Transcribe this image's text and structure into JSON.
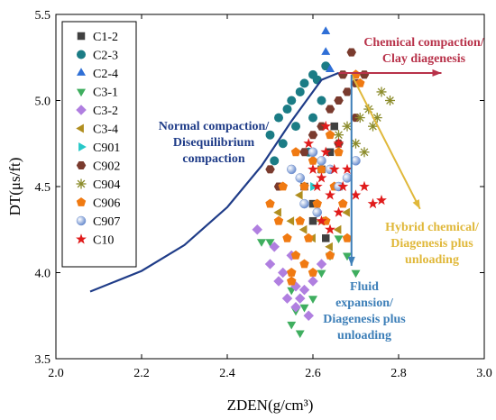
{
  "chart_data": {
    "type": "scatter",
    "xlabel": "ZDEN(g/cm³)",
    "ylabel": "DT(μs/ft)",
    "xlim": [
      2.0,
      3.0
    ],
    "ylim": [
      3.5,
      5.5
    ],
    "x_ticks": [
      "2.0",
      "2.2",
      "2.4",
      "2.6",
      "2.8",
      "3.0"
    ],
    "y_ticks": [
      "3.5",
      "4.0",
      "4.5",
      "5.0",
      "5.5"
    ],
    "grid": false,
    "legend_position": "top-left",
    "series": [
      {
        "name": "C1-2",
        "marker": "square",
        "color": "#404040",
        "points": [
          [
            2.58,
            4.5
          ],
          [
            2.6,
            4.4
          ],
          [
            2.62,
            4.6
          ],
          [
            2.64,
            4.7
          ],
          [
            2.66,
            4.5
          ],
          [
            2.6,
            4.3
          ],
          [
            2.65,
            4.85
          ],
          [
            2.63,
            4.2
          ]
        ]
      },
      {
        "name": "C2-3",
        "marker": "circle",
        "color": "#1b7c85",
        "points": [
          [
            2.5,
            4.8
          ],
          [
            2.52,
            4.9
          ],
          [
            2.55,
            5.0
          ],
          [
            2.57,
            5.05
          ],
          [
            2.58,
            5.1
          ],
          [
            2.6,
            5.15
          ],
          [
            2.61,
            5.12
          ],
          [
            2.63,
            5.2
          ],
          [
            2.54,
            4.95
          ],
          [
            2.56,
            4.85
          ],
          [
            2.59,
            4.7
          ],
          [
            2.6,
            4.9
          ],
          [
            2.62,
            5.0
          ],
          [
            2.53,
            4.75
          ],
          [
            2.51,
            4.65
          ]
        ]
      },
      {
        "name": "C2-4",
        "marker": "triangle-up",
        "color": "#2f6fd6",
        "points": [
          [
            2.63,
            5.4
          ],
          [
            2.63,
            5.28
          ],
          [
            2.64,
            5.18
          ]
        ]
      },
      {
        "name": "C3-1",
        "marker": "triangle-down",
        "color": "#3fae5f",
        "points": [
          [
            2.48,
            4.18
          ],
          [
            2.5,
            4.18
          ],
          [
            2.55,
            3.7
          ],
          [
            2.56,
            3.78
          ],
          [
            2.58,
            3.8
          ],
          [
            2.57,
            3.65
          ],
          [
            2.6,
            3.85
          ],
          [
            2.62,
            4.0
          ],
          [
            2.64,
            4.1
          ],
          [
            2.66,
            4.2
          ],
          [
            2.68,
            4.1
          ],
          [
            2.7,
            4.0
          ],
          [
            2.55,
            3.9
          ]
        ]
      },
      {
        "name": "C3-2",
        "marker": "diamond",
        "color": "#b07fe0",
        "points": [
          [
            2.47,
            4.25
          ],
          [
            2.5,
            4.05
          ],
          [
            2.52,
            3.95
          ],
          [
            2.54,
            3.85
          ],
          [
            2.56,
            3.8
          ],
          [
            2.58,
            3.9
          ],
          [
            2.53,
            4.0
          ],
          [
            2.55,
            4.1
          ],
          [
            2.57,
            3.85
          ],
          [
            2.6,
            3.95
          ],
          [
            2.62,
            4.05
          ],
          [
            2.51,
            4.15
          ],
          [
            2.59,
            3.75
          ],
          [
            2.56,
            3.92
          ]
        ]
      },
      {
        "name": "C3-4",
        "marker": "triangle-left",
        "color": "#b08e1f",
        "points": [
          [
            2.52,
            4.35
          ],
          [
            2.55,
            4.3
          ],
          [
            2.58,
            4.25
          ],
          [
            2.6,
            4.2
          ],
          [
            2.62,
            4.3
          ],
          [
            2.64,
            4.15
          ],
          [
            2.66,
            4.25
          ],
          [
            2.68,
            4.35
          ],
          [
            2.57,
            4.45
          ]
        ]
      },
      {
        "name": "C901",
        "marker": "triangle-right",
        "color": "#28c8c8",
        "points": [
          [
            2.6,
            4.5
          ],
          [
            2.62,
            4.6
          ]
        ]
      },
      {
        "name": "C902",
        "marker": "hexagon",
        "color": "#7a3b2e",
        "points": [
          [
            2.5,
            4.6
          ],
          [
            2.52,
            4.5
          ],
          [
            2.55,
            4.6
          ],
          [
            2.58,
            4.7
          ],
          [
            2.6,
            4.8
          ],
          [
            2.62,
            4.85
          ],
          [
            2.64,
            4.95
          ],
          [
            2.66,
            5.0
          ],
          [
            2.68,
            5.05
          ],
          [
            2.7,
            5.1
          ],
          [
            2.69,
            5.28
          ],
          [
            2.67,
            5.15
          ],
          [
            2.72,
            5.15
          ],
          [
            2.7,
            4.9
          ],
          [
            2.66,
            4.75
          ]
        ]
      },
      {
        "name": "C904",
        "marker": "asterisk",
        "color": "#8b8b2a",
        "points": [
          [
            2.66,
            4.8
          ],
          [
            2.68,
            4.85
          ],
          [
            2.7,
            4.75
          ],
          [
            2.72,
            4.7
          ],
          [
            2.74,
            4.85
          ],
          [
            2.75,
            4.9
          ],
          [
            2.76,
            5.05
          ],
          [
            2.73,
            4.95
          ],
          [
            2.71,
            4.9
          ],
          [
            2.78,
            5.0
          ]
        ]
      },
      {
        "name": "C906",
        "marker": "pentagon",
        "color": "#f07a12",
        "points": [
          [
            2.5,
            4.4
          ],
          [
            2.52,
            4.3
          ],
          [
            2.54,
            4.2
          ],
          [
            2.55,
            4.0
          ],
          [
            2.56,
            4.1
          ],
          [
            2.57,
            4.3
          ],
          [
            2.58,
            4.5
          ],
          [
            2.59,
            4.2
          ],
          [
            2.6,
            4.0
          ],
          [
            2.61,
            4.4
          ],
          [
            2.62,
            4.6
          ],
          [
            2.63,
            4.3
          ],
          [
            2.64,
            4.1
          ],
          [
            2.65,
            4.5
          ],
          [
            2.66,
            4.7
          ],
          [
            2.67,
            4.4
          ],
          [
            2.68,
            4.2
          ],
          [
            2.7,
            5.15
          ],
          [
            2.71,
            5.1
          ],
          [
            2.53,
            4.5
          ],
          [
            2.56,
            4.7
          ],
          [
            2.6,
            4.65
          ],
          [
            2.55,
            3.95
          ],
          [
            2.58,
            4.05
          ],
          [
            2.64,
            4.8
          ]
        ]
      },
      {
        "name": "C907",
        "marker": "sphere",
        "color": "#6d8fcf",
        "points": [
          [
            2.55,
            4.6
          ],
          [
            2.57,
            4.55
          ],
          [
            2.6,
            4.7
          ],
          [
            2.62,
            4.65
          ],
          [
            2.64,
            4.6
          ],
          [
            2.58,
            4.4
          ],
          [
            2.61,
            4.35
          ],
          [
            2.66,
            4.5
          ],
          [
            2.68,
            4.55
          ],
          [
            2.7,
            4.65
          ]
        ]
      },
      {
        "name": "C10",
        "marker": "star",
        "color": "#e01b1b",
        "points": [
          [
            2.6,
            4.6
          ],
          [
            2.61,
            4.5
          ],
          [
            2.62,
            4.55
          ],
          [
            2.63,
            4.7
          ],
          [
            2.64,
            4.45
          ],
          [
            2.65,
            4.6
          ],
          [
            2.66,
            4.75
          ],
          [
            2.67,
            4.5
          ],
          [
            2.68,
            4.6
          ],
          [
            2.7,
            4.45
          ],
          [
            2.72,
            4.5
          ],
          [
            2.74,
            4.4
          ],
          [
            2.76,
            4.42
          ],
          [
            2.62,
            4.3
          ],
          [
            2.64,
            4.25
          ],
          [
            2.66,
            4.35
          ],
          [
            2.59,
            4.75
          ],
          [
            2.63,
            4.85
          ]
        ]
      }
    ],
    "curves": [
      {
        "name": "normal-compaction-trend",
        "color": "#1f3c88",
        "points": [
          [
            2.08,
            3.89
          ],
          [
            2.2,
            4.01
          ],
          [
            2.3,
            4.16
          ],
          [
            2.4,
            4.38
          ],
          [
            2.48,
            4.62
          ],
          [
            2.55,
            4.88
          ],
          [
            2.62,
            5.12
          ],
          [
            2.66,
            5.16
          ]
        ]
      }
    ],
    "arrows": [
      {
        "name": "chemical-compaction-arrow",
        "color": "#b8324a",
        "from": [
          2.66,
          5.16
        ],
        "to": [
          2.9,
          5.16
        ]
      },
      {
        "name": "hybrid-chemical-arrow",
        "color": "#e0b83a",
        "from": [
          2.69,
          5.15
        ],
        "to": [
          2.85,
          4.37
        ]
      },
      {
        "name": "fluid-expansion-arrow",
        "color": "#3d7fb8",
        "from": [
          2.69,
          5.15
        ],
        "to": [
          2.69,
          4.04
        ]
      }
    ],
    "annotations": [
      {
        "lines": [
          "Chemical compaction/",
          "Clay diagenesis"
        ],
        "color": "#b8324a"
      },
      {
        "lines": [
          "Normal compaction/",
          "Disequilibrium",
          "compaction"
        ],
        "color": "#1f3c88"
      },
      {
        "lines": [
          "Hybrid chemical/",
          "Diagenesis plus",
          "unloading"
        ],
        "color": "#e0b83a"
      },
      {
        "lines": [
          "Fluid",
          "expansion/",
          "Diagenesis plus",
          "unloading"
        ],
        "color": "#3d7fb8"
      }
    ]
  }
}
